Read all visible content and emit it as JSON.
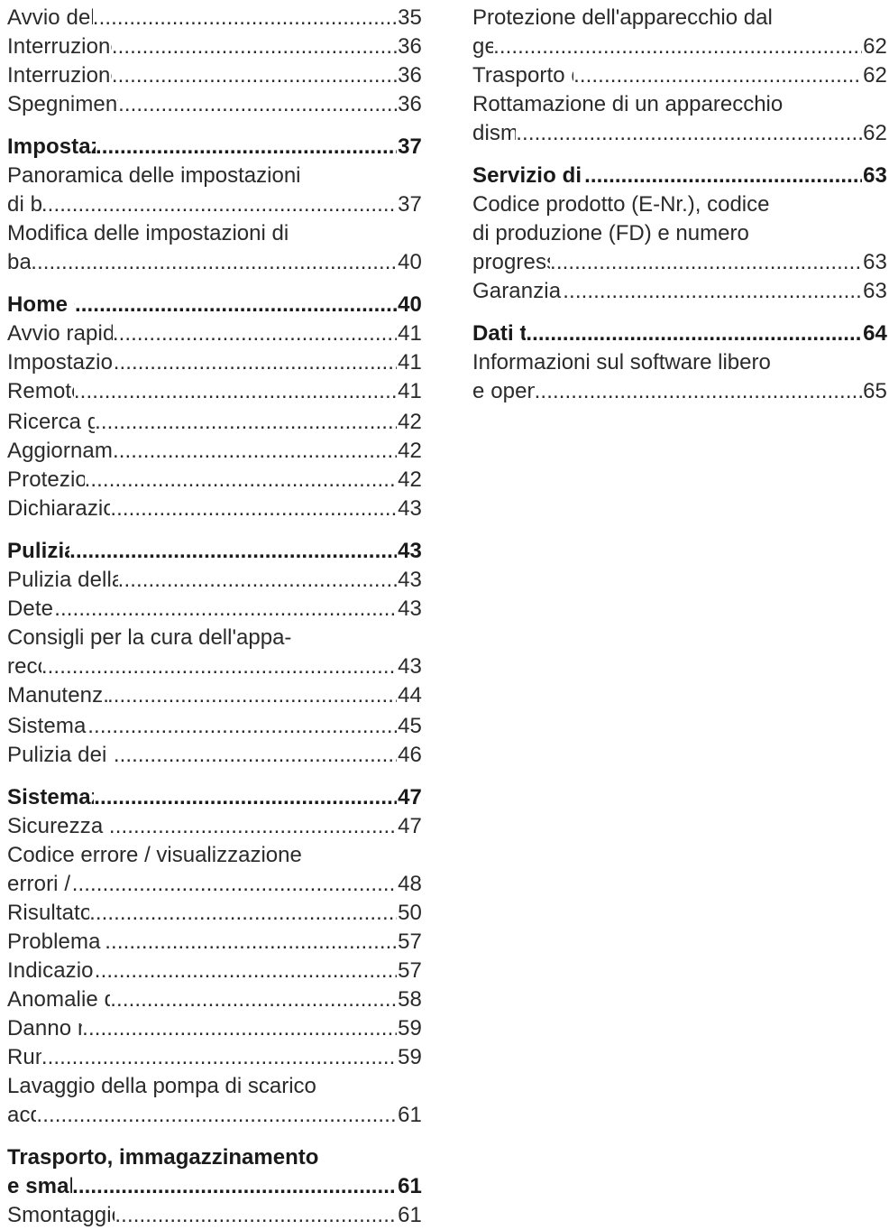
{
  "left": {
    "intro": [
      {
        "text": "Avvio del programma",
        "page": "35"
      },
      {
        "text": "Interruzione del programma",
        "page": "36"
      },
      {
        "text": "Interruzione del programma",
        "page": "36"
      },
      {
        "text": "Spegnimento dell'apparecchio",
        "page": "36"
      }
    ],
    "impostazioni": {
      "title": "Impostazioni di base",
      "page": "37",
      "e1_l1": "Panoramica delle impostazioni",
      "e1_l2": "di base",
      "e1_page": "37",
      "e2_l1": "Modifica delle impostazioni di",
      "e2_l2": "base",
      "e2_page": "40"
    },
    "home": {
      "title": "Home Connect",
      "page": "40",
      "avvio": "Avvio rapido Home Connect",
      "avvio_page": "41",
      "impostazioni": "Impostazioni Home Connect",
      "impostazioni_page": "41",
      "remote": "Remote Start",
      "remote_page": "41",
      "ricerca": "Ricerca guasti remota",
      "ricerca_page": "42",
      "aggiornamento": "Aggiornamento del software",
      "aggiornamento_page": "42",
      "protezione": "Protezione dei dati",
      "protezione_page": "42",
      "dichiarazione": "Dichiarazione di conformità",
      "dichiarazione_page": "43"
    },
    "pulizia": {
      "title": "Pulizia e cura",
      "page": "43",
      "vasca": "Pulizia della vasca di lavaggio",
      "vasca_page": "43",
      "detergenti": "Detergenti",
      "detergenti_page": "43",
      "consigli_l1": "Consigli per la cura dell'appa-",
      "consigli_l2": "recchio",
      "consigli_page": "43",
      "manutenz": "Manutenz. apparecchio",
      "manutenz_page": "44",
      "filtraggio": "Sistema di filtraggio",
      "filtraggio_page": "45",
      "bracci": "Pulizia dei bracci di lavaggio",
      "bracci_page": "46"
    },
    "guasti": {
      "title": "Sistemazione guasti",
      "page": "47",
      "sicurezza": "Sicurezza dell'apparecchio",
      "sicurezza_page": "47",
      "codice_l1": "Codice errore / visualizzazione",
      "codice_l2": "errori / segnale",
      "codice_page": "48",
      "risultato": "Risultato di lavaggio",
      "risultato_page": "50",
      "problema": "Problema Home Connect",
      "problema_page": "57",
      "indicazioni": "Indicazioni sul display",
      "indicazioni_page": "57",
      "anomalie": "Anomalie di funzionamento",
      "anomalie_page": "58",
      "danno": "Danno meccanico",
      "danno_page": "59",
      "rumori": "Rumori",
      "rumori_page": "59",
      "pompa_l1": "Lavaggio della pompa di scarico",
      "pompa_l2": "acqua",
      "pompa_page": "61"
    },
    "trasporto": {
      "title_l1": "Trasporto, immagazzinamento",
      "title_l2": "e smaltimento",
      "page": "61",
      "smontaggio": "Smontaggio dell'apparecchio",
      "smontaggio_page": "61"
    }
  },
  "right": {
    "top": {
      "gelo_l1": "Protezione dell'apparecchio dal",
      "gelo_l2": "gelo",
      "gelo_page": "62",
      "trasporto": "Trasporto dell’apparecchio",
      "trasporto_page": "62",
      "rottamazione_l1": "Rottamazione di un apparecchio",
      "rottamazione_l2": "dismesso",
      "rottamazione_page": "62"
    },
    "servizio": {
      "title": "Servizio di assistenza clienti",
      "page": "63",
      "codice_l1": "Codice prodotto (E-Nr.), codice",
      "codice_l2": "di produzione (FD) e numero",
      "codice_l3": "progressivo (Z-Nr.)",
      "codice_page": "63",
      "garanzia": "Garanzia AQUA-STOP",
      "garanzia_page": "63"
    },
    "dati": {
      "title": "Dati tecnici",
      "page": "64",
      "info_l1": "Informazioni sul software libero",
      "info_l2": "e open source",
      "info_page": "65"
    }
  }
}
